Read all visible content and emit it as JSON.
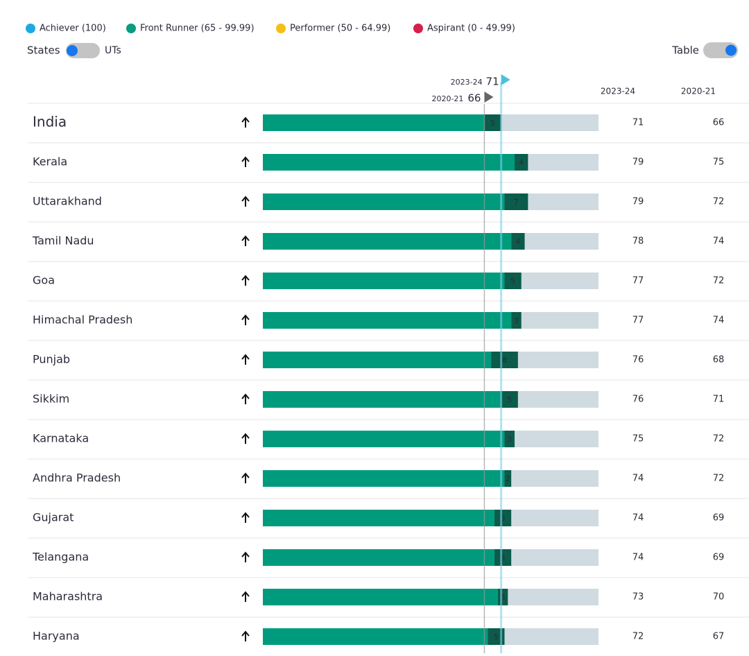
{
  "controls": {
    "states": "States",
    "uts": "UTs",
    "table": "Table"
  },
  "chart_data": {
    "type": "bar",
    "legend": [
      {
        "name": "Achiever (100)",
        "color": "#1ea8e0"
      },
      {
        "name": "Front Runner (65 - 99.99)",
        "color": "#0a9b82"
      },
      {
        "name": "Performer (50 - 64.99)",
        "color": "#f3c01a"
      },
      {
        "name": "Aspirant (0 - 49.99)",
        "color": "#d5204b"
      }
    ],
    "categories": [
      "India",
      "Kerala",
      "Uttarakhand",
      "Tamil Nadu",
      "Goa",
      "Himachal Pradesh",
      "Punjab",
      "Sikkim",
      "Karnataka",
      "Andhra Pradesh",
      "Gujarat",
      "Telangana",
      "Maharashtra",
      "Haryana"
    ],
    "series": [
      {
        "name": "2023-24",
        "color": "#0b5c4a",
        "values": [
          71,
          79,
          79,
          78,
          77,
          77,
          76,
          76,
          75,
          74,
          74,
          74,
          73,
          72
        ]
      },
      {
        "name": "2020-21",
        "color": "#009b7d",
        "values": [
          66,
          75,
          72,
          74,
          72,
          74,
          68,
          71,
          72,
          72,
          69,
          69,
          70,
          67
        ]
      }
    ],
    "change": [
      5,
      4,
      7,
      4,
      5,
      3,
      8,
      5,
      3,
      2,
      5,
      5,
      3,
      5
    ],
    "xlim": [
      0,
      100
    ],
    "track_color": "#cfdbe0"
  }
}
